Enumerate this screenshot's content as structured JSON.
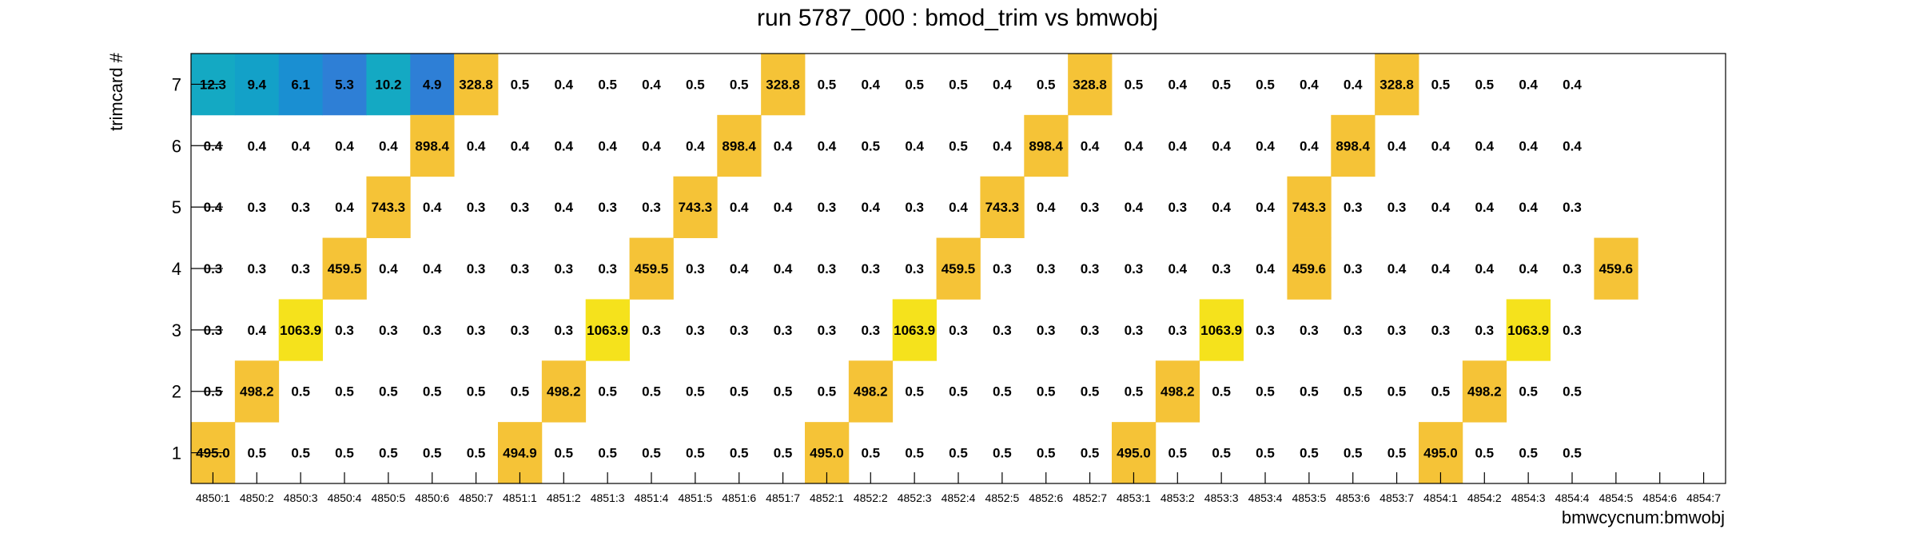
{
  "chart_data": {
    "type": "heatmap",
    "title": "run 5787_000 : bmod_trim vs bmwobj",
    "xlabel": "bmwcycnum:bmwobj",
    "ylabel": "trimcard #",
    "x_categories": [
      "4850:1",
      "4850:2",
      "4850:3",
      "4850:4",
      "4850:5",
      "4850:6",
      "4850:7",
      "4851:1",
      "4851:2",
      "4851:3",
      "4851:4",
      "4851:5",
      "4851:6",
      "4851:7",
      "4852:1",
      "4852:2",
      "4852:3",
      "4852:4",
      "4852:5",
      "4852:6",
      "4852:7",
      "4853:1",
      "4853:2",
      "4853:3",
      "4853:4",
      "4853:5",
      "4853:6",
      "4853:7",
      "4854:1",
      "4854:2",
      "4854:3",
      "4854:4",
      "4854:5",
      "4854:6",
      "4854:7"
    ],
    "y_categories": [
      "1",
      "2",
      "3",
      "4",
      "5",
      "6",
      "7"
    ],
    "rows": [
      {
        "y": "7",
        "values": [
          12.3,
          9.4,
          6.1,
          5.3,
          10.2,
          4.9,
          328.8,
          0.5,
          0.4,
          0.5,
          0.4,
          0.5,
          0.5,
          328.8,
          0.5,
          0.4,
          0.5,
          0.5,
          0.4,
          0.5,
          328.8,
          0.5,
          0.4,
          0.5,
          0.5,
          0.4,
          0.4,
          328.8,
          0.5,
          0.5,
          0.4,
          0.4,
          null,
          null,
          null
        ]
      },
      {
        "y": "6",
        "values": [
          0.4,
          0.4,
          0.4,
          0.4,
          0.4,
          898.4,
          0.4,
          0.4,
          0.4,
          0.4,
          0.4,
          0.4,
          898.4,
          0.4,
          0.4,
          0.5,
          0.4,
          0.5,
          0.4,
          898.4,
          0.4,
          0.4,
          0.4,
          0.4,
          0.4,
          0.4,
          898.4,
          0.4,
          0.4,
          0.4,
          0.4,
          0.4,
          null,
          null,
          null
        ]
      },
      {
        "y": "5",
        "values": [
          0.4,
          0.3,
          0.3,
          0.4,
          743.3,
          0.4,
          0.3,
          0.3,
          0.4,
          0.3,
          0.3,
          743.3,
          0.4,
          0.4,
          0.3,
          0.4,
          0.3,
          0.4,
          743.3,
          0.4,
          0.3,
          0.4,
          0.3,
          0.4,
          0.4,
          743.3,
          0.3,
          0.3,
          0.4,
          0.4,
          0.4,
          0.3,
          null,
          null,
          null
        ]
      },
      {
        "y": "4",
        "values": [
          0.3,
          0.3,
          0.3,
          459.5,
          0.4,
          0.4,
          0.3,
          0.3,
          0.3,
          0.3,
          459.5,
          0.3,
          0.4,
          0.4,
          0.3,
          0.3,
          0.3,
          459.5,
          0.3,
          0.3,
          0.3,
          0.3,
          0.4,
          0.3,
          0.4,
          459.6,
          0.3,
          0.4,
          0.4,
          0.4,
          0.4,
          0.3,
          459.6,
          null,
          null
        ]
      },
      {
        "y": "3",
        "values": [
          0.3,
          0.4,
          1063.9,
          0.3,
          0.3,
          0.3,
          0.3,
          0.3,
          0.3,
          1063.9,
          0.3,
          0.3,
          0.3,
          0.3,
          0.3,
          0.3,
          1063.9,
          0.3,
          0.3,
          0.3,
          0.3,
          0.3,
          0.3,
          1063.9,
          0.3,
          0.3,
          0.3,
          0.3,
          0.3,
          0.3,
          1063.9,
          0.3,
          null,
          null,
          null
        ]
      },
      {
        "y": "2",
        "values": [
          0.5,
          498.2,
          0.5,
          0.5,
          0.5,
          0.5,
          0.5,
          0.5,
          498.2,
          0.5,
          0.5,
          0.5,
          0.5,
          0.5,
          0.5,
          498.2,
          0.5,
          0.5,
          0.5,
          0.5,
          0.5,
          0.5,
          498.2,
          0.5,
          0.5,
          0.5,
          0.5,
          0.5,
          0.5,
          498.2,
          0.5,
          0.5,
          null,
          null,
          null
        ]
      },
      {
        "y": "1",
        "values": [
          495.0,
          0.5,
          0.5,
          0.5,
          0.5,
          0.5,
          0.5,
          494.9,
          0.5,
          0.5,
          0.5,
          0.5,
          0.5,
          0.5,
          495.0,
          0.5,
          0.5,
          0.5,
          0.5,
          0.5,
          0.5,
          495.0,
          0.5,
          0.5,
          0.5,
          0.5,
          0.5,
          0.5,
          495.0,
          0.5,
          0.5,
          0.5,
          null,
          null,
          null
        ]
      }
    ],
    "colors": {
      "lowest": "#2e7fd6",
      "low": "#1f9fc9",
      "mid": "#f5c337",
      "high": "#f5e21c"
    }
  }
}
